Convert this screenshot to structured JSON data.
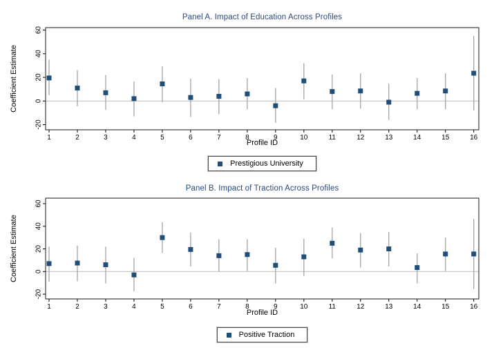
{
  "figure": {
    "background": "#ffffff",
    "title_color": "#2b4a7e",
    "marker_color": "#1f4e79",
    "ci_color": "#a9a9a9",
    "zero_line_color": "#c3c3c3",
    "frame_color": "#1a1a1a",
    "tick_color": "#000000"
  },
  "chart_data": [
    {
      "type": "scatter",
      "title": "Panel A. Impact of Education Across Profiles",
      "xlabel": "Profile ID",
      "ylabel": "Coefficient Estimate",
      "x": [
        1,
        2,
        3,
        4,
        5,
        6,
        7,
        8,
        9,
        10,
        11,
        12,
        13,
        14,
        15,
        16
      ],
      "yticks": [
        -20,
        0,
        20,
        40,
        60
      ],
      "ylim": [
        -24.5,
        62
      ],
      "grid": false,
      "zero_reference_line": 0,
      "legend_position": "bottom-center",
      "series": [
        {
          "name": "Prestigious University",
          "values": [
            19.5,
            11,
            7,
            2,
            14.5,
            3,
            4,
            6,
            -4,
            17,
            8,
            8.5,
            -1,
            6.5,
            8.5,
            23.5
          ],
          "ci_low": [
            5,
            -4.5,
            -7.5,
            -13,
            -1,
            -13.5,
            -11,
            -7,
            -18.5,
            1.5,
            -7,
            -6.5,
            -16,
            -7,
            -7,
            -8
          ],
          "ci_high": [
            35,
            26,
            22,
            16.5,
            29.5,
            19,
            18.5,
            19.5,
            11,
            32,
            22.5,
            23.5,
            14.5,
            19.5,
            23.5,
            55
          ]
        }
      ]
    },
    {
      "type": "scatter",
      "title": "Panel B. Impact of Traction Across Profiles",
      "xlabel": "Profile ID",
      "ylabel": "Coefficient Estimate",
      "x": [
        1,
        2,
        3,
        4,
        5,
        6,
        7,
        8,
        9,
        10,
        11,
        12,
        13,
        14,
        15,
        16
      ],
      "yticks": [
        -20,
        0,
        20,
        40,
        60
      ],
      "ylim": [
        -24.5,
        62
      ],
      "grid": false,
      "zero_reference_line": 0,
      "legend_position": "bottom-center",
      "series": [
        {
          "name": "Positive Traction",
          "values": [
            7,
            7.5,
            6,
            -3,
            30,
            19.5,
            14,
            15,
            5.5,
            13,
            25,
            19,
            20,
            3.5,
            15.5,
            15.5
          ],
          "ci_low": [
            -9,
            -8.5,
            -10.5,
            -17.5,
            16.5,
            4.5,
            0,
            0.5,
            -10.5,
            -4,
            11.5,
            3.5,
            4.5,
            -10.5,
            0.5,
            -15.5
          ],
          "ci_high": [
            22,
            23,
            22,
            12,
            43.5,
            34.5,
            28.5,
            28.5,
            21,
            29,
            39,
            34,
            35,
            16,
            30,
            46.5
          ]
        }
      ]
    }
  ]
}
